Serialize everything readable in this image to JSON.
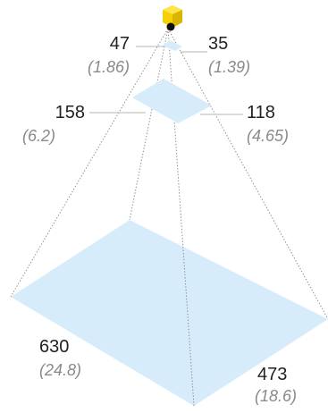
{
  "colors": {
    "plane_fill": "#d6ecfa",
    "ray_stroke": "#8c8c8c",
    "leader_stroke": "#b4b4b4",
    "camera_body": "#f5d000",
    "camera_lens": "#111111"
  },
  "icon": {
    "camera": "camera-icon"
  },
  "near_plane": {
    "width_px": "47",
    "width_mm": "(1.86)",
    "height_px": "35",
    "height_mm": "(1.39)"
  },
  "mid_plane": {
    "width_px": "158",
    "width_mm": "(6.2)",
    "height_px": "118",
    "height_mm": "(4.65)"
  },
  "far_plane": {
    "width_px": "630",
    "width_mm": "(24.8)",
    "height_px": "473",
    "height_mm": "(18.6)"
  }
}
